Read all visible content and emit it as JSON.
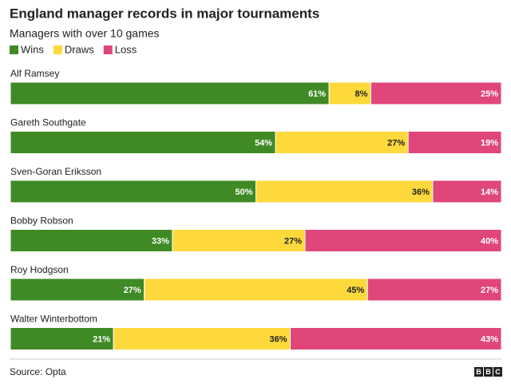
{
  "chart_data": {
    "type": "stacked_bar_horizontal",
    "title": "England manager records in major tournaments",
    "subtitle": "Managers with over 10 games",
    "categories": [
      "Alf Ramsey",
      "Gareth Southgate",
      "Sven-Goran Eriksson",
      "Bobby Robson",
      "Roy Hodgson",
      "Walter Winterbottom"
    ],
    "series": [
      {
        "name": "Wins",
        "color": "#3f8a24",
        "label_color": "#ffffff",
        "values": [
          61,
          54,
          50,
          33,
          27,
          21
        ],
        "value_labels": [
          "61%",
          "54%",
          "50%",
          "33%",
          "27%",
          "21%"
        ]
      },
      {
        "name": "Draws",
        "color": "#fdd93c",
        "label_color": "#222222",
        "values": [
          8,
          27,
          36,
          27,
          45,
          36
        ],
        "value_labels": [
          "8%",
          "27%",
          "36%",
          "27%",
          "45%",
          "36%"
        ]
      },
      {
        "name": "Loss",
        "color": "#e0467a",
        "label_color": "#ffffff",
        "values": [
          25,
          19,
          14,
          40,
          27,
          43
        ],
        "value_labels": [
          "25%",
          "19%",
          "14%",
          "40%",
          "27%",
          "43%"
        ]
      }
    ],
    "source": "Source: Opta",
    "logo": [
      "B",
      "B",
      "C"
    ]
  }
}
